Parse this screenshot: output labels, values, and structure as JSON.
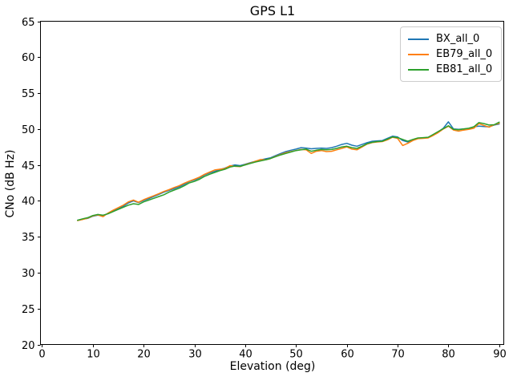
{
  "figure": {
    "background": "#ffffff",
    "title": "GPS L1",
    "xlabel": "Elevation (deg)",
    "ylabel": "CNo (dB Hz)"
  },
  "legend": {
    "entries": [
      {
        "label": "BX_all_0",
        "color": "#1f77b4"
      },
      {
        "label": "EB79_all_0",
        "color": "#ff7f0e"
      },
      {
        "label": "EB81_all_0",
        "color": "#2ca02c"
      }
    ]
  },
  "chart_data": {
    "type": "line",
    "title": "GPS L1",
    "xlabel": "Elevation (deg)",
    "ylabel": "CNo (dB Hz)",
    "xlim": [
      -0.3,
      90.9
    ],
    "ylim": [
      20,
      65
    ],
    "xticks": [
      0,
      10,
      20,
      30,
      40,
      50,
      60,
      70,
      80,
      90
    ],
    "yticks": [
      20,
      25,
      30,
      35,
      40,
      45,
      50,
      55,
      60,
      65
    ],
    "grid": false,
    "legend_position": "upper right",
    "x": [
      7,
      8,
      9,
      10,
      11,
      12,
      13,
      14,
      15,
      16,
      17,
      18,
      19,
      20,
      21,
      22,
      23,
      24,
      25,
      26,
      27,
      28,
      29,
      30,
      31,
      32,
      33,
      34,
      35,
      36,
      37,
      38,
      39,
      40,
      41,
      42,
      43,
      44,
      45,
      46,
      47,
      48,
      49,
      50,
      51,
      52,
      53,
      54,
      55,
      56,
      57,
      58,
      59,
      60,
      61,
      62,
      63,
      64,
      65,
      66,
      67,
      68,
      69,
      70,
      71,
      72,
      73,
      74,
      75,
      76,
      77,
      78,
      79,
      80,
      81,
      82,
      83,
      84,
      85,
      86,
      87,
      88,
      89,
      90
    ],
    "series": [
      {
        "name": "BX_all_0",
        "color": "#1f77b4",
        "values": [
          37.3,
          37.45,
          37.55,
          37.85,
          38.0,
          37.9,
          38.25,
          38.6,
          38.9,
          39.25,
          39.7,
          40.0,
          39.75,
          40.05,
          40.3,
          40.6,
          40.9,
          41.2,
          41.45,
          41.7,
          41.95,
          42.3,
          42.7,
          42.9,
          43.2,
          43.6,
          43.9,
          44.1,
          44.35,
          44.55,
          44.85,
          45.0,
          44.9,
          45.1,
          45.3,
          45.5,
          45.7,
          45.85,
          46.0,
          46.3,
          46.6,
          46.85,
          47.05,
          47.2,
          47.4,
          47.35,
          47.25,
          47.3,
          47.35,
          47.3,
          47.4,
          47.6,
          47.85,
          48.0,
          47.75,
          47.6,
          47.85,
          48.1,
          48.3,
          48.35,
          48.4,
          48.7,
          49.0,
          48.9,
          48.4,
          48.2,
          48.5,
          48.7,
          48.75,
          48.8,
          49.2,
          49.6,
          50.1,
          51.0,
          50.0,
          49.95,
          50.0,
          50.05,
          50.3,
          50.4,
          50.35,
          50.3,
          50.55,
          50.7
        ]
      },
      {
        "name": "EB79_all_0",
        "color": "#ff7f0e",
        "values": [
          37.25,
          37.4,
          37.6,
          37.9,
          38.05,
          37.8,
          38.3,
          38.7,
          39.05,
          39.4,
          39.85,
          40.1,
          39.8,
          40.15,
          40.45,
          40.7,
          41.0,
          41.3,
          41.55,
          41.85,
          42.1,
          42.45,
          42.75,
          43.0,
          43.3,
          43.7,
          44.0,
          44.3,
          44.4,
          44.5,
          44.9,
          44.8,
          44.75,
          45.05,
          45.25,
          45.5,
          45.75,
          45.7,
          45.9,
          46.2,
          46.45,
          46.7,
          46.85,
          47.0,
          47.15,
          47.1,
          46.6,
          46.9,
          47.0,
          46.85,
          46.9,
          47.1,
          47.3,
          47.5,
          47.2,
          47.1,
          47.5,
          47.9,
          48.1,
          48.2,
          48.25,
          48.5,
          48.85,
          48.7,
          47.7,
          48.0,
          48.4,
          48.65,
          48.7,
          48.75,
          49.1,
          49.5,
          50.0,
          50.4,
          49.85,
          49.7,
          49.85,
          49.95,
          50.1,
          50.75,
          50.5,
          50.25,
          50.6,
          50.8
        ]
      },
      {
        "name": "EB81_all_0",
        "color": "#2ca02c",
        "values": [
          37.3,
          37.5,
          37.65,
          37.95,
          38.1,
          38.0,
          38.2,
          38.5,
          38.8,
          39.1,
          39.4,
          39.6,
          39.5,
          39.85,
          40.1,
          40.35,
          40.6,
          40.85,
          41.2,
          41.5,
          41.75,
          42.1,
          42.5,
          42.7,
          43.0,
          43.4,
          43.7,
          43.95,
          44.2,
          44.4,
          44.7,
          44.85,
          44.8,
          45.0,
          45.2,
          45.4,
          45.55,
          45.7,
          45.9,
          46.15,
          46.4,
          46.6,
          46.8,
          47.0,
          47.1,
          47.2,
          46.9,
          47.05,
          47.15,
          47.1,
          47.15,
          47.3,
          47.5,
          47.6,
          47.4,
          47.3,
          47.6,
          47.95,
          48.15,
          48.25,
          48.3,
          48.6,
          48.9,
          48.8,
          48.55,
          48.3,
          48.55,
          48.75,
          48.8,
          48.85,
          49.25,
          49.65,
          50.05,
          50.45,
          49.95,
          49.9,
          50.0,
          50.1,
          50.3,
          50.9,
          50.75,
          50.55,
          50.6,
          50.95
        ]
      }
    ]
  }
}
